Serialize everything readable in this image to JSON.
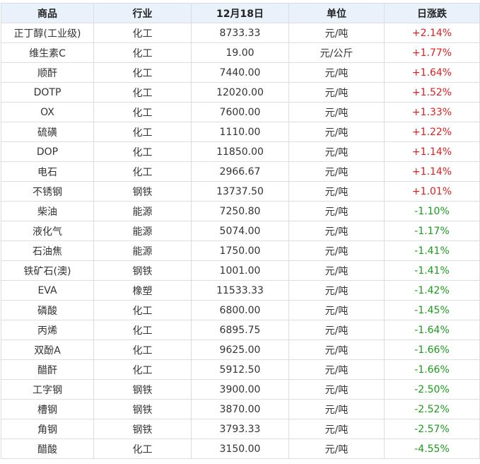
{
  "table": {
    "headers": {
      "name": "商品",
      "industry": "行业",
      "price": "12月18日",
      "unit": "单位",
      "change": "日涨跌"
    },
    "colors": {
      "up": "#e02020",
      "down": "#1a9c1a",
      "header_bg": "#e9f2fb",
      "border": "#d8dde6"
    },
    "rows": [
      {
        "name": "正丁醇(工业级)",
        "industry": "化工",
        "price": "8733.33",
        "unit": "元/吨",
        "change": "+2.14%",
        "direction": "up"
      },
      {
        "name": "维生素C",
        "industry": "化工",
        "price": "19.00",
        "unit": "元/公斤",
        "change": "+1.77%",
        "direction": "up"
      },
      {
        "name": "顺酐",
        "industry": "化工",
        "price": "7440.00",
        "unit": "元/吨",
        "change": "+1.64%",
        "direction": "up"
      },
      {
        "name": "DOTP",
        "industry": "化工",
        "price": "12020.00",
        "unit": "元/吨",
        "change": "+1.52%",
        "direction": "up"
      },
      {
        "name": "OX",
        "industry": "化工",
        "price": "7600.00",
        "unit": "元/吨",
        "change": "+1.33%",
        "direction": "up"
      },
      {
        "name": "硫磺",
        "industry": "化工",
        "price": "1110.00",
        "unit": "元/吨",
        "change": "+1.22%",
        "direction": "up"
      },
      {
        "name": "DOP",
        "industry": "化工",
        "price": "11850.00",
        "unit": "元/吨",
        "change": "+1.14%",
        "direction": "up"
      },
      {
        "name": "电石",
        "industry": "化工",
        "price": "2966.67",
        "unit": "元/吨",
        "change": "+1.14%",
        "direction": "up"
      },
      {
        "name": "不锈钢",
        "industry": "钢铁",
        "price": "13737.50",
        "unit": "元/吨",
        "change": "+1.01%",
        "direction": "up"
      },
      {
        "name": "柴油",
        "industry": "能源",
        "price": "7250.80",
        "unit": "元/吨",
        "change": "-1.10%",
        "direction": "down"
      },
      {
        "name": "液化气",
        "industry": "能源",
        "price": "5074.00",
        "unit": "元/吨",
        "change": "-1.17%",
        "direction": "down"
      },
      {
        "name": "石油焦",
        "industry": "能源",
        "price": "1750.00",
        "unit": "元/吨",
        "change": "-1.41%",
        "direction": "down"
      },
      {
        "name": "铁矿石(澳)",
        "industry": "钢铁",
        "price": "1001.00",
        "unit": "元/吨",
        "change": "-1.41%",
        "direction": "down"
      },
      {
        "name": "EVA",
        "industry": "橡塑",
        "price": "11533.33",
        "unit": "元/吨",
        "change": "-1.42%",
        "direction": "down"
      },
      {
        "name": "磷酸",
        "industry": "化工",
        "price": "6800.00",
        "unit": "元/吨",
        "change": "-1.45%",
        "direction": "down"
      },
      {
        "name": "丙烯",
        "industry": "化工",
        "price": "6895.75",
        "unit": "元/吨",
        "change": "-1.64%",
        "direction": "down"
      },
      {
        "name": "双酚A",
        "industry": "化工",
        "price": "9625.00",
        "unit": "元/吨",
        "change": "-1.66%",
        "direction": "down"
      },
      {
        "name": "醋酐",
        "industry": "化工",
        "price": "5912.50",
        "unit": "元/吨",
        "change": "-1.66%",
        "direction": "down"
      },
      {
        "name": "工字钢",
        "industry": "钢铁",
        "price": "3900.00",
        "unit": "元/吨",
        "change": "-2.50%",
        "direction": "down"
      },
      {
        "name": "槽钢",
        "industry": "钢铁",
        "price": "3870.00",
        "unit": "元/吨",
        "change": "-2.52%",
        "direction": "down"
      },
      {
        "name": "角钢",
        "industry": "钢铁",
        "price": "3793.33",
        "unit": "元/吨",
        "change": "-2.57%",
        "direction": "down"
      },
      {
        "name": "醋酸",
        "industry": "化工",
        "price": "3150.00",
        "unit": "元/吨",
        "change": "-4.55%",
        "direction": "down"
      }
    ]
  }
}
